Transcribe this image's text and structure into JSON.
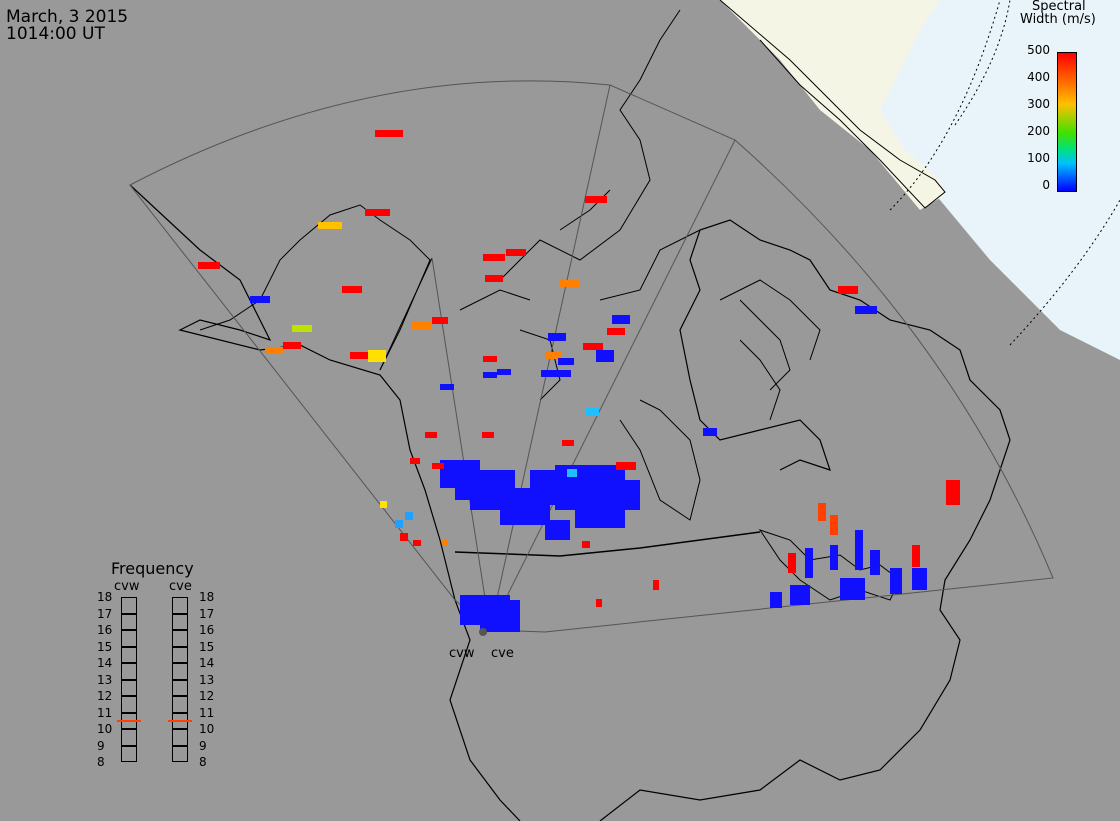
{
  "header": {
    "date": "March, 3 2015",
    "time": "1014:00 UT"
  },
  "colorbar": {
    "title_line1": "Spectral",
    "title_line2": "Width (m/s)",
    "ticks": [
      "500",
      "400",
      "300",
      "200",
      "100",
      "0"
    ],
    "colors": [
      "#0000ff",
      "#00c0ff",
      "#00e080",
      "#40e000",
      "#c0e000",
      "#ffc000",
      "#ff8000",
      "#ff0000"
    ]
  },
  "frequency_panel": {
    "title": "Frequency",
    "radars": [
      "cvw",
      "cve"
    ],
    "ticks": [
      "18",
      "17",
      "16",
      "15",
      "14",
      "13",
      "12",
      "11",
      "10",
      "9",
      "8"
    ],
    "selected_value_mhz": 10.5,
    "marker_color": "#ff4000"
  },
  "radar_sites": {
    "labels": [
      "cvw",
      "cve"
    ]
  },
  "map": {
    "land_color": "#999999",
    "daylight_color": "#f5f5e6",
    "polar_ocean_color": "#e8f4fa",
    "fov_outline_color": "#555555"
  }
}
